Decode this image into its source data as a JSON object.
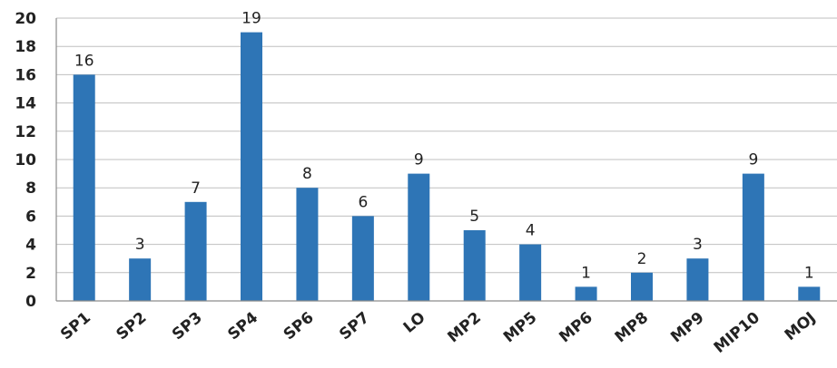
{
  "chart_data": {
    "type": "bar",
    "categories": [
      "SP1",
      "SP2",
      "SP3",
      "SP4",
      "SP6",
      "SP7",
      "LO",
      "MP2",
      "MP5",
      "MP6",
      "MP8",
      "MP9",
      "MIP10",
      "MOJ"
    ],
    "values": [
      16,
      3,
      7,
      19,
      8,
      6,
      9,
      5,
      4,
      1,
      2,
      3,
      9,
      1
    ],
    "y_ticks": [
      "0",
      "2",
      "4",
      "6",
      "8",
      "10",
      "12",
      "14",
      "16",
      "18",
      "20"
    ],
    "ylim": [
      0,
      20
    ],
    "grid": true,
    "legend": "none",
    "bar_color": "#2e75b6",
    "grid_color": "#bfbfbf"
  }
}
